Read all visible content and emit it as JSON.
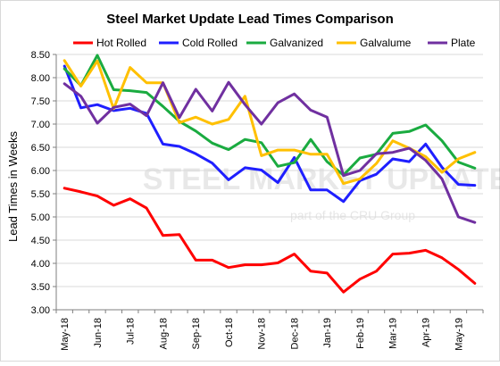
{
  "chart_data": {
    "type": "line",
    "title": "Steel Market Update Lead Times Comparison",
    "ylabel": "Lead Times in Weeks",
    "xlabel": "",
    "ylim": [
      3.0,
      8.5
    ],
    "yticks": [
      "3.00",
      "3.50",
      "4.00",
      "4.50",
      "5.00",
      "5.50",
      "6.00",
      "6.50",
      "7.00",
      "7.50",
      "8.00",
      "8.50"
    ],
    "grid": "horizontal",
    "legend": "top",
    "watermark": [
      "STEEL MARKET UPDATE",
      "part of the CRU Group"
    ],
    "x_tick_labels": [
      "May-18",
      "Jun-18",
      "Jul-18",
      "Aug-18",
      "Sep-18",
      "Oct-18",
      "Nov-18",
      "Dec-18",
      "Jan-19",
      "Feb-19",
      "Mar-19",
      "Apr-19",
      "May-19"
    ],
    "x_tick_every": 2,
    "series": [
      {
        "name": "Hot Rolled",
        "color": "#ff0000",
        "values": [
          5.62,
          5.54,
          5.45,
          5.25,
          5.39,
          5.19,
          4.6,
          4.62,
          4.07,
          4.07,
          3.91,
          3.97,
          3.97,
          4.01,
          4.2,
          3.83,
          3.79,
          3.38,
          3.66,
          3.83,
          4.2,
          4.22,
          4.28,
          4.12,
          3.87,
          3.57
        ]
      },
      {
        "name": "Cold Rolled",
        "color": "#1f1fff",
        "values": [
          8.25,
          7.35,
          7.42,
          7.29,
          7.34,
          7.23,
          6.57,
          6.52,
          6.36,
          6.16,
          5.8,
          6.06,
          6.01,
          5.74,
          6.28,
          5.58,
          5.58,
          5.33,
          5.78,
          5.92,
          6.25,
          6.19,
          6.57,
          6.07,
          5.7,
          5.68
        ]
      },
      {
        "name": "Galvanized",
        "color": "#1aab40",
        "values": [
          8.19,
          7.83,
          8.48,
          7.74,
          7.72,
          7.68,
          7.38,
          7.06,
          6.85,
          6.59,
          6.45,
          6.67,
          6.6,
          6.09,
          6.17,
          6.67,
          6.19,
          5.9,
          6.27,
          6.35,
          6.8,
          6.84,
          6.98,
          6.64,
          6.18,
          6.05
        ]
      },
      {
        "name": "Galvalume",
        "color": "#ffc000",
        "values": [
          8.37,
          7.82,
          8.36,
          7.33,
          8.22,
          7.89,
          7.89,
          7.03,
          7.15,
          7.0,
          7.1,
          7.6,
          6.32,
          6.44,
          6.44,
          6.35,
          6.35,
          5.72,
          5.82,
          6.15,
          6.64,
          6.48,
          6.3,
          5.96,
          6.25,
          6.39
        ]
      },
      {
        "name": "Plate",
        "color": "#7030a0",
        "values": [
          7.87,
          7.6,
          7.02,
          7.36,
          7.43,
          7.18,
          7.89,
          7.14,
          7.75,
          7.28,
          7.9,
          7.42,
          7.0,
          7.46,
          7.65,
          7.3,
          7.15,
          5.89,
          6.0,
          6.36,
          6.39,
          6.48,
          6.22,
          5.82,
          5.0,
          4.88
        ]
      }
    ]
  }
}
